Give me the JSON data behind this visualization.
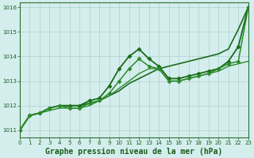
{
  "x": [
    0,
    1,
    2,
    3,
    4,
    5,
    6,
    7,
    8,
    9,
    10,
    11,
    12,
    13,
    14,
    15,
    16,
    17,
    18,
    19,
    20,
    21,
    22,
    23
  ],
  "series": [
    {
      "name": "line_straight",
      "y": [
        1011.0,
        1011.6,
        1011.7,
        1011.9,
        1012.0,
        1012.0,
        1012.0,
        1012.1,
        1012.2,
        1012.4,
        1012.6,
        1012.9,
        1013.1,
        1013.3,
        1013.5,
        1013.6,
        1013.7,
        1013.8,
        1013.9,
        1014.0,
        1014.1,
        1014.3,
        1015.1,
        1016.0
      ],
      "color": "#1a6b1a",
      "linewidth": 1.2,
      "marker": null,
      "markersize": 0
    },
    {
      "name": "line_peak_high",
      "y": [
        1011.0,
        1011.6,
        1011.7,
        1011.9,
        1012.0,
        1012.0,
        1012.0,
        1012.2,
        1012.3,
        1012.8,
        1013.5,
        1014.0,
        1014.3,
        1013.9,
        1013.6,
        1013.1,
        1013.1,
        1013.2,
        1013.3,
        1013.4,
        1013.5,
        1013.8,
        1014.4,
        1016.0
      ],
      "color": "#1a6b1a",
      "linewidth": 1.3,
      "marker": "D",
      "markersize": 2.5
    },
    {
      "name": "line_peak_mid",
      "y": [
        1011.0,
        1011.6,
        1011.7,
        1011.9,
        1012.0,
        1011.9,
        1011.9,
        1012.1,
        1012.2,
        1012.5,
        1013.0,
        1013.5,
        1013.9,
        1013.6,
        1013.5,
        1013.0,
        1013.0,
        1013.1,
        1013.2,
        1013.3,
        1013.5,
        1013.7,
        1013.8,
        1016.0
      ],
      "color": "#2d8a2d",
      "linewidth": 1.1,
      "marker": "D",
      "markersize": 2.5
    },
    {
      "name": "line_flat_end",
      "y": [
        1011.0,
        1011.6,
        1011.7,
        1011.8,
        1011.9,
        1011.9,
        1011.9,
        1012.0,
        1012.2,
        1012.4,
        1012.7,
        1013.0,
        1013.3,
        1013.5,
        1013.5,
        1013.0,
        1013.0,
        1013.1,
        1013.2,
        1013.3,
        1013.4,
        1013.6,
        1013.7,
        1013.8
      ],
      "color": "#2d8a2d",
      "linewidth": 1.0,
      "marker": null,
      "markersize": 0
    }
  ],
  "xlim": [
    0,
    23
  ],
  "ylim": [
    1010.7,
    1016.2
  ],
  "yticks": [
    1011,
    1012,
    1013,
    1014,
    1015,
    1016
  ],
  "xticks": [
    0,
    1,
    2,
    3,
    4,
    5,
    6,
    7,
    8,
    9,
    10,
    11,
    12,
    13,
    14,
    15,
    16,
    17,
    18,
    19,
    20,
    21,
    22,
    23
  ],
  "xlabel": "Graphe pression niveau de la mer (hPa)",
  "bg_color": "#d4eeed",
  "grid_color": "#aed0cc",
  "axis_color": "#2d6e2d",
  "tick_color": "#1a5c1a",
  "label_color": "#1a5c1a",
  "tick_fontsize": 5.0,
  "xlabel_fontsize": 7.0
}
